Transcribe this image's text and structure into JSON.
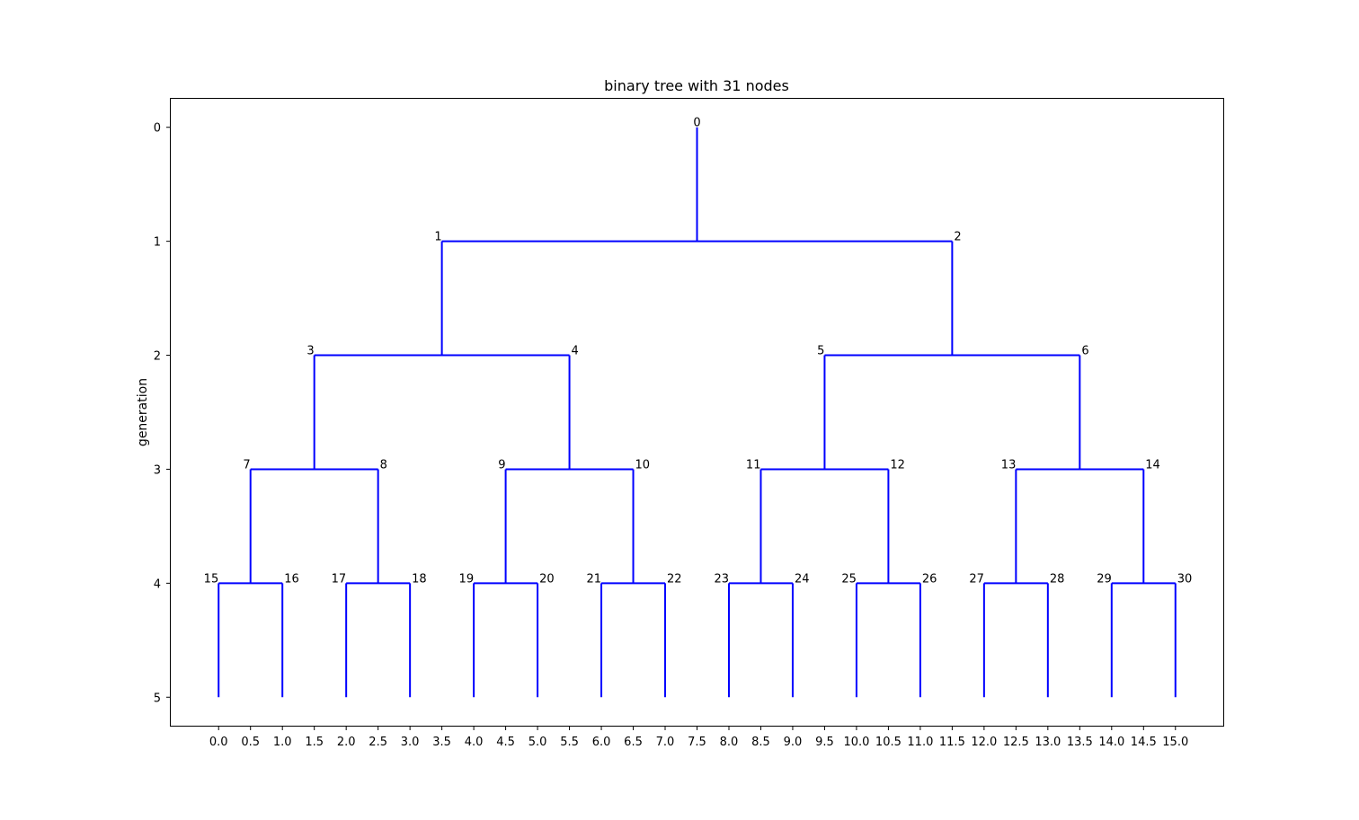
{
  "chart_data": {
    "type": "tree",
    "title": "binary tree with 31 nodes",
    "xlabel": "",
    "ylabel": "generation",
    "line_color": "#0000ff",
    "xlim": [
      -0.75,
      15.75
    ],
    "ylim": [
      5.25,
      -0.25
    ],
    "y_ticks": [
      0,
      1,
      2,
      3,
      4,
      5
    ],
    "x_ticks": [
      "0.0",
      "0.5",
      "1.0",
      "1.5",
      "2.0",
      "2.5",
      "3.0",
      "3.5",
      "4.0",
      "4.5",
      "5.0",
      "5.5",
      "6.0",
      "6.5",
      "7.0",
      "7.5",
      "8.0",
      "8.5",
      "9.0",
      "9.5",
      "10.0",
      "10.5",
      "11.0",
      "11.5",
      "12.0",
      "12.5",
      "13.0",
      "13.5",
      "14.0",
      "14.5",
      "15.0"
    ],
    "grid": false,
    "nodes": [
      {
        "id": "0",
        "x": 7.5,
        "gen": 0
      },
      {
        "id": "1",
        "x": 3.5,
        "gen": 1
      },
      {
        "id": "2",
        "x": 11.5,
        "gen": 1
      },
      {
        "id": "3",
        "x": 1.5,
        "gen": 2
      },
      {
        "id": "4",
        "x": 5.5,
        "gen": 2
      },
      {
        "id": "5",
        "x": 9.5,
        "gen": 2
      },
      {
        "id": "6",
        "x": 13.5,
        "gen": 2
      },
      {
        "id": "7",
        "x": 0.5,
        "gen": 3
      },
      {
        "id": "8",
        "x": 2.5,
        "gen": 3
      },
      {
        "id": "9",
        "x": 4.5,
        "gen": 3
      },
      {
        "id": "10",
        "x": 6.5,
        "gen": 3
      },
      {
        "id": "11",
        "x": 8.5,
        "gen": 3
      },
      {
        "id": "12",
        "x": 10.5,
        "gen": 3
      },
      {
        "id": "13",
        "x": 12.5,
        "gen": 3
      },
      {
        "id": "14",
        "x": 14.5,
        "gen": 3
      },
      {
        "id": "15",
        "x": 0.0,
        "gen": 4
      },
      {
        "id": "16",
        "x": 1.0,
        "gen": 4
      },
      {
        "id": "17",
        "x": 2.0,
        "gen": 4
      },
      {
        "id": "18",
        "x": 3.0,
        "gen": 4
      },
      {
        "id": "19",
        "x": 4.0,
        "gen": 4
      },
      {
        "id": "20",
        "x": 5.0,
        "gen": 4
      },
      {
        "id": "21",
        "x": 6.0,
        "gen": 4
      },
      {
        "id": "22",
        "x": 7.0,
        "gen": 4
      },
      {
        "id": "23",
        "x": 8.0,
        "gen": 4
      },
      {
        "id": "24",
        "x": 9.0,
        "gen": 4
      },
      {
        "id": "25",
        "x": 10.0,
        "gen": 4
      },
      {
        "id": "26",
        "x": 11.0,
        "gen": 4
      },
      {
        "id": "27",
        "x": 12.0,
        "gen": 4
      },
      {
        "id": "28",
        "x": 13.0,
        "gen": 4
      },
      {
        "id": "29",
        "x": 14.0,
        "gen": 4
      },
      {
        "id": "30",
        "x": 15.0,
        "gen": 4
      }
    ]
  }
}
